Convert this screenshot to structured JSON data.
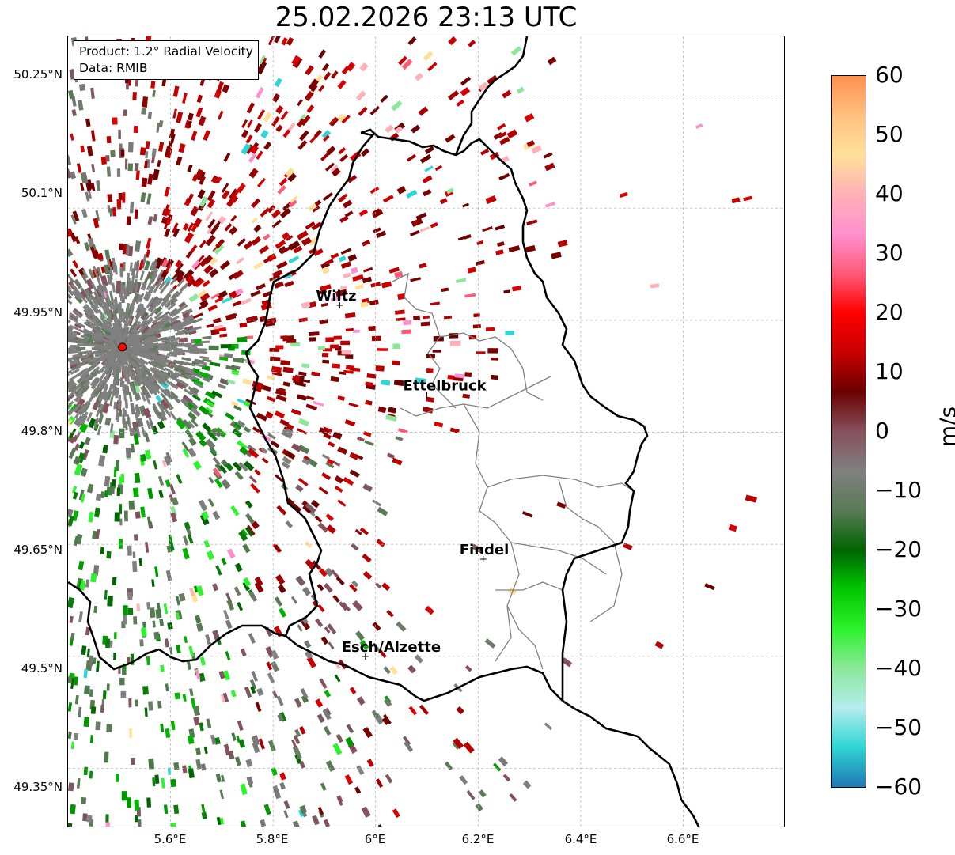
{
  "title": "25.02.2026 23:13 UTC",
  "info": {
    "product": "Product: 1.2° Radial Velocity",
    "data_source": "Data: RMIB"
  },
  "y_axis_ticks": [
    "50.25°N",
    "50.1°N",
    "49.95°N",
    "49.8°N",
    "49.65°N",
    "49.5°N",
    "49.35°N"
  ],
  "x_axis_ticks": [
    "5.6°E",
    "5.8°E",
    "6°E",
    "6.2°E",
    "6.4°E",
    "6.6°E"
  ],
  "colorbar": {
    "label": "m/s",
    "ticks": [
      "60",
      "50",
      "40",
      "30",
      "20",
      "10",
      "0",
      "−10",
      "−20",
      "−30",
      "−40",
      "−50",
      "−60"
    ],
    "min": -60,
    "max": 60,
    "stops": [
      "#1f77b4",
      "#30d5d5",
      "#b4ecee",
      "#8be89a",
      "#2df22d",
      "#00c800",
      "#006400",
      "#5a7a56",
      "#808080",
      "#86505c",
      "#6b0000",
      "#c80000",
      "#ff0000",
      "#ff5a78",
      "#ff90d0",
      "#ffb0b8",
      "#ffe098",
      "#ffc080",
      "#ff9050"
    ]
  },
  "cities": [
    {
      "name": "Wiltz",
      "lon": 5.93,
      "lat": 49.97
    },
    {
      "name": "Ettelbruck",
      "lon": 6.1,
      "lat": 49.85
    },
    {
      "name": "Findel",
      "lon": 6.21,
      "lat": 49.63
    },
    {
      "name": "Esch/Alzette",
      "lon": 5.98,
      "lat": 49.5
    }
  ],
  "radar_site": {
    "lon": 5.506,
    "lat": 49.914
  },
  "colors": {
    "border": "#000000",
    "canton_lines": "#808080",
    "gridlines": "#b0b0b0",
    "radar_marker": "#ff0000"
  }
}
